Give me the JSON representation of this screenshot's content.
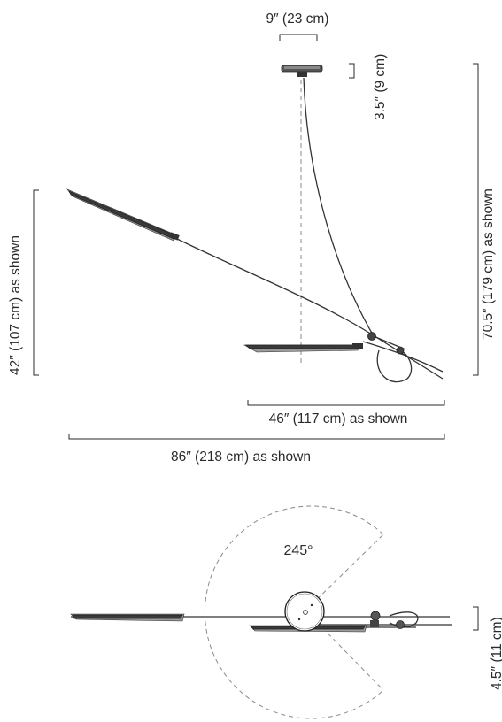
{
  "dimensions": {
    "canopy_width": "9″ (23 cm)",
    "canopy_height": "3.5″ (9 cm)",
    "total_drop": "70.5″ (179 cm) as shown",
    "left_height": "42″ (107 cm) as shown",
    "lower_span": "46″ (117 cm) as shown",
    "total_span": "86″ (218 cm) as shown",
    "plan_depth": "4.5″ (11 cm)"
  },
  "rotation": {
    "angle_label": "245°"
  }
}
